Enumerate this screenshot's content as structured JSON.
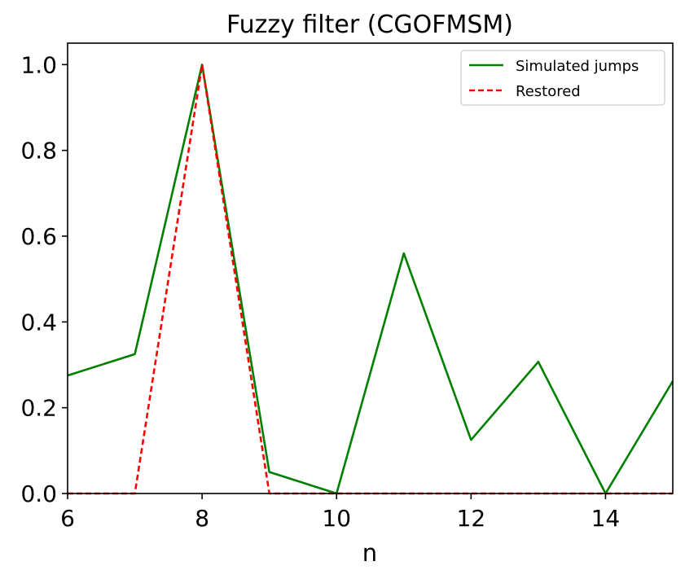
{
  "chart_data": {
    "type": "line",
    "title": "Fuzzy filter (CGOFMSM)",
    "xlabel": "n",
    "ylabel": "",
    "xlim": [
      6,
      15
    ],
    "ylim": [
      0,
      1.05
    ],
    "xticks": [
      6,
      8,
      10,
      12,
      14
    ],
    "xtick_labels": [
      "6",
      "8",
      "10",
      "12",
      "14"
    ],
    "yticks": [
      0,
      0.2,
      0.4,
      0.6,
      0.8,
      1.0
    ],
    "ytick_labels": [
      "0.0",
      "0.2",
      "0.4",
      "0.6",
      "0.8",
      "1.0"
    ],
    "grid": false,
    "legend_position": "top-right",
    "x": [
      6,
      7,
      8,
      9,
      10,
      11,
      12,
      13,
      14,
      15
    ],
    "series": [
      {
        "name": "Simulated jumps",
        "color": "#008000",
        "style": "solid",
        "values": [
          0.275,
          0.325,
          1.0,
          0.05,
          0.0,
          0.56,
          0.125,
          0.307,
          0.0,
          0.262
        ]
      },
      {
        "name": "Restored",
        "color": "#ff0000",
        "style": "dashed",
        "values": [
          0.0,
          0.0,
          1.0,
          0.0,
          0.0,
          0.0,
          0.0,
          0.0,
          0.0,
          0.0
        ]
      }
    ]
  }
}
